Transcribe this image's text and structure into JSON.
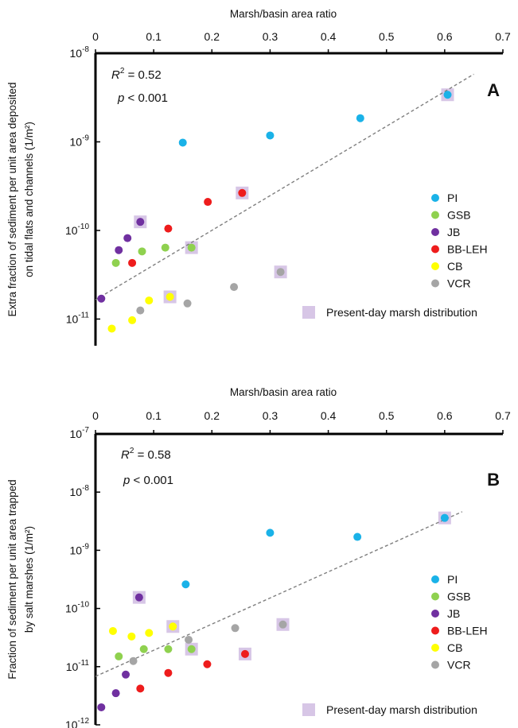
{
  "colors": {
    "PI": "#1ab2e8",
    "GSB": "#8fd14f",
    "JB": "#7030a0",
    "BB-LEH": "#ee1c1c",
    "CB": "#ffff00",
    "VCR": "#a5a5a5",
    "marker_square": "#d7c6e6",
    "fit_line": "#7f7f7f",
    "axes": "#000000"
  },
  "chart_data": [
    {
      "type": "scatter",
      "panel_label": "A",
      "xlabel": "Marsh/basin area ratio",
      "ylabel_line1": "Extra fraction of sediment per unit area deposited",
      "ylabel_line2": "on tidal flats and channels (1/m²)",
      "x_axis_position": "top",
      "y_scale": "log",
      "xlim": [
        0,
        0.7
      ],
      "ylim": [
        5e-12,
        1e-08
      ],
      "x_ticks": [
        "0",
        "0.1",
        "0.2",
        "0.3",
        "0.4",
        "0.5",
        "0.6",
        "0.7"
      ],
      "y_tick_values": [
        1e-08,
        1e-09,
        1e-10,
        1e-11
      ],
      "stat_r2": "= 0.52",
      "stat_p": "< 0.001",
      "fit_line": {
        "x": [
          0,
          0.65
        ],
        "y": [
          1.65e-11,
          5.8e-09
        ]
      },
      "series": [
        {
          "name": "PI",
          "x": [
            0.15,
            0.3,
            0.455,
            0.605
          ],
          "y": [
            9.8e-10,
            1.18e-09,
            1.85e-09,
            3.4e-09
          ]
        },
        {
          "name": "GSB",
          "x": [
            0.035,
            0.08,
            0.12,
            0.165
          ],
          "y": [
            4.3e-11,
            5.8e-11,
            6.4e-11,
            6.4e-11
          ]
        },
        {
          "name": "JB",
          "x": [
            0.01,
            0.04,
            0.055,
            0.077
          ],
          "y": [
            1.7e-11,
            6e-11,
            8.2e-11,
            1.25e-10
          ]
        },
        {
          "name": "BB-LEH",
          "x": [
            0.063,
            0.125,
            0.193,
            0.252
          ],
          "y": [
            4.3e-11,
            1.05e-10,
            2.1e-10,
            2.65e-10
          ]
        },
        {
          "name": "CB",
          "x": [
            0.028,
            0.063,
            0.092,
            0.128
          ],
          "y": [
            7.8e-12,
            9.7e-12,
            1.62e-11,
            1.78e-11
          ]
        },
        {
          "name": "VCR",
          "x": [
            0.077,
            0.158,
            0.238,
            0.318
          ],
          "y": [
            1.25e-11,
            1.5e-11,
            2.3e-11,
            3.4e-11
          ]
        }
      ],
      "present_day": [
        {
          "x": 0.605,
          "y": 3.4e-09
        },
        {
          "x": 0.252,
          "y": 2.65e-10
        },
        {
          "x": 0.077,
          "y": 1.25e-10
        },
        {
          "x": 0.165,
          "y": 6.4e-11
        },
        {
          "x": 0.318,
          "y": 3.4e-11
        },
        {
          "x": 0.128,
          "y": 1.78e-11
        }
      ],
      "legend": {
        "placement": "right",
        "entries": [
          "PI",
          "GSB",
          "JB",
          "BB-LEH",
          "CB",
          "VCR"
        ],
        "marker_label": "Present-day marsh distribution"
      }
    },
    {
      "type": "scatter",
      "panel_label": "B",
      "xlabel": "Marsh/basin area ratio",
      "ylabel_line1": "Fraction of sediment per unit area trapped",
      "ylabel_line2": "by salt marshes (1/m²)",
      "x_axis_position": "top",
      "y_scale": "log",
      "xlim": [
        0,
        0.7
      ],
      "ylim": [
        1e-12,
        1e-07
      ],
      "x_ticks": [
        "0",
        "0.1",
        "0.2",
        "0.3",
        "0.4",
        "0.5",
        "0.6",
        "0.7"
      ],
      "y_tick_values": [
        1e-07,
        1e-08,
        1e-09,
        1e-10,
        1e-11,
        1e-12
      ],
      "stat_r2": "= 0.58",
      "stat_p": "< 0.001",
      "fit_line": {
        "x": [
          0,
          0.63
        ],
        "y": [
          6.8e-12,
          4.6e-09
        ]
      },
      "series": [
        {
          "name": "PI",
          "x": [
            0.155,
            0.3,
            0.45,
            0.6
          ],
          "y": [
            2.6e-10,
            2e-09,
            1.7e-09,
            3.6e-09
          ]
        },
        {
          "name": "GSB",
          "x": [
            0.04,
            0.083,
            0.125,
            0.165
          ],
          "y": [
            1.5e-11,
            2e-11,
            2e-11,
            2e-11
          ]
        },
        {
          "name": "JB",
          "x": [
            0.01,
            0.035,
            0.052,
            0.075
          ],
          "y": [
            2e-12,
            3.5e-12,
            7.3e-12,
            1.55e-10
          ]
        },
        {
          "name": "BB-LEH",
          "x": [
            0.077,
            0.125,
            0.192,
            0.257
          ],
          "y": [
            4.2e-12,
            7.8e-12,
            1.1e-11,
            1.65e-11
          ]
        },
        {
          "name": "CB",
          "x": [
            0.03,
            0.062,
            0.092,
            0.133
          ],
          "y": [
            4.1e-11,
            3.3e-11,
            3.8e-11,
            4.9e-11
          ]
        },
        {
          "name": "VCR",
          "x": [
            0.065,
            0.16,
            0.24,
            0.322
          ],
          "y": [
            1.25e-11,
            2.9e-11,
            4.6e-11,
            5.3e-11
          ]
        }
      ],
      "present_day": [
        {
          "x": 0.6,
          "y": 3.6e-09
        },
        {
          "x": 0.075,
          "y": 1.55e-10
        },
        {
          "x": 0.322,
          "y": 5.3e-11
        },
        {
          "x": 0.133,
          "y": 4.9e-11
        },
        {
          "x": 0.165,
          "y": 2e-11
        },
        {
          "x": 0.257,
          "y": 1.65e-11
        }
      ],
      "legend": {
        "placement": "right",
        "entries": [
          "PI",
          "GSB",
          "JB",
          "BB-LEH",
          "CB",
          "VCR"
        ],
        "marker_label": "Present-day marsh distribution"
      }
    }
  ]
}
